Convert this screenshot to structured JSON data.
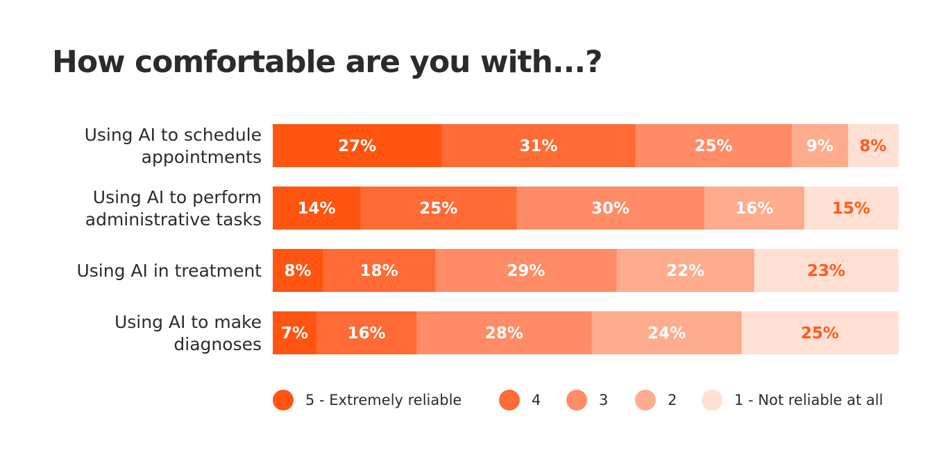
{
  "chart_data": {
    "type": "bar",
    "orientation": "horizontal",
    "stacked": true,
    "title": "How comfortable are you with...?",
    "categories": [
      [
        "Using AI to schedule",
        "appointments"
      ],
      [
        "Using AI to perform",
        "administrative tasks"
      ],
      [
        "Using AI in treatment"
      ],
      [
        "Using AI to make",
        "diagnoses"
      ]
    ],
    "series": [
      {
        "name": "5 - Extremely reliable",
        "color": "#ff5511",
        "label_color": "#ffffff",
        "values": [
          27,
          14,
          8,
          7
        ]
      },
      {
        "name": "4",
        "color": "#ff6a35",
        "label_color": "#ffffff",
        "values": [
          31,
          25,
          18,
          16
        ]
      },
      {
        "name": "3",
        "color": "#ff8c66",
        "label_color": "#ffffff",
        "values": [
          25,
          30,
          29,
          28
        ]
      },
      {
        "name": "2",
        "color": "#ffab8e",
        "label_color": "#ffffff",
        "values": [
          9,
          16,
          22,
          24
        ]
      },
      {
        "name": "1 - Not reliable at all",
        "color": "#ffe0d2",
        "label_color": "#ff5a1f",
        "values": [
          8,
          15,
          23,
          25
        ]
      }
    ],
    "value_suffix": "%",
    "legend_position": "bottom-right",
    "grid": false
  }
}
